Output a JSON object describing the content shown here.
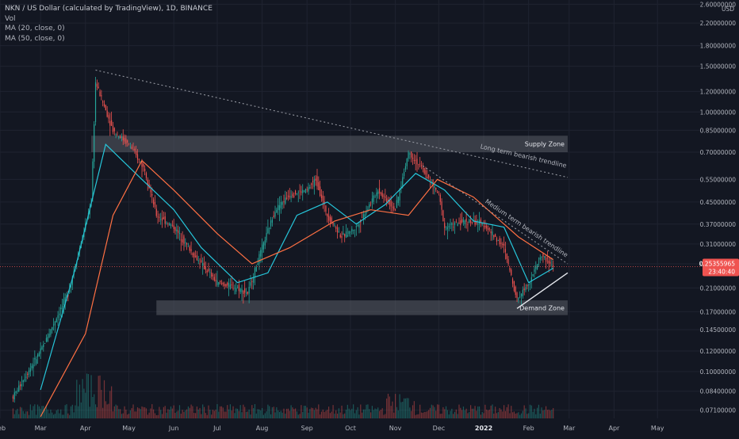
{
  "header": {
    "title": "NKN / US Dollar (calculated by TradingView), 1D, BINANCE",
    "indicators": [
      "Vol",
      "MA (20, close, 0)",
      "MA (50, close, 0)"
    ]
  },
  "price_axis": {
    "currency": "USD",
    "ticks": [
      "2.60000000",
      "2.20000000",
      "1.80000000",
      "1.50000000",
      "1.20000000",
      "1.00000000",
      "0.85000000",
      "0.70000000",
      "0.55000000",
      "0.45000000",
      "0.37000000",
      "0.31000000",
      "0.26000000",
      "0.21000000",
      "0.17000000",
      "0.14500000",
      "0.12000000",
      "0.10000000",
      "0.08400000",
      "0.07100000"
    ],
    "current_price": "0.25355965",
    "countdown": "23:40:40"
  },
  "time_axis": {
    "labels": [
      "Feb",
      "Mar",
      "Apr",
      "May",
      "Jun",
      "Jul",
      "Aug",
      "Sep",
      "Oct",
      "Nov",
      "Dec",
      "2022",
      "Feb",
      "Mar",
      "Apr",
      "May"
    ]
  },
  "annotations": {
    "supply_zone": "Supply Zone",
    "demand_zone": "Demand Zone",
    "long_trend": "Long term bearish trendline",
    "medium_trend": "Medium term bearish trendline"
  },
  "colors": {
    "background": "#131722",
    "up": "#26a69a",
    "down": "#ef5350",
    "ma20": "#26c6da",
    "ma50": "#ff7043",
    "zone": "#5a5d66",
    "price_label": "#ef5350"
  },
  "chart_data": {
    "type": "candlestick",
    "title": "NKN / US Dollar (calculated by TradingView), 1D, BINANCE",
    "scale": "log",
    "y_range": [
      0.066,
      2.7
    ],
    "x_range": [
      "2021-02-01",
      "2022-05-31"
    ],
    "series": [
      {
        "name": "NKNUSD",
        "points": [
          {
            "date": "2021-02-10",
            "close": 0.08
          },
          {
            "date": "2021-03-01",
            "close": 0.12
          },
          {
            "date": "2021-03-20",
            "close": 0.2
          },
          {
            "date": "2021-04-05",
            "close": 0.45
          },
          {
            "date": "2021-04-08",
            "close": 1.3
          },
          {
            "date": "2021-04-20",
            "close": 0.85
          },
          {
            "date": "2021-05-01",
            "close": 0.75
          },
          {
            "date": "2021-05-12",
            "close": 0.6
          },
          {
            "date": "2021-05-20",
            "close": 0.4
          },
          {
            "date": "2021-06-01",
            "close": 0.36
          },
          {
            "date": "2021-06-15",
            "close": 0.28
          },
          {
            "date": "2021-07-01",
            "close": 0.22
          },
          {
            "date": "2021-07-15",
            "close": 0.21
          },
          {
            "date": "2021-07-22",
            "close": 0.2
          },
          {
            "date": "2021-08-01",
            "close": 0.3
          },
          {
            "date": "2021-08-10",
            "close": 0.42
          },
          {
            "date": "2021-08-20",
            "close": 0.48
          },
          {
            "date": "2021-09-01",
            "close": 0.5
          },
          {
            "date": "2021-09-07",
            "close": 0.55
          },
          {
            "date": "2021-09-15",
            "close": 0.4
          },
          {
            "date": "2021-09-25",
            "close": 0.33
          },
          {
            "date": "2021-10-05",
            "close": 0.36
          },
          {
            "date": "2021-10-20",
            "close": 0.5
          },
          {
            "date": "2021-11-01",
            "close": 0.42
          },
          {
            "date": "2021-11-10",
            "close": 0.7
          },
          {
            "date": "2021-11-20",
            "close": 0.6
          },
          {
            "date": "2021-12-01",
            "close": 0.48
          },
          {
            "date": "2021-12-05",
            "close": 0.36
          },
          {
            "date": "2021-12-20",
            "close": 0.38
          },
          {
            "date": "2022-01-01",
            "close": 0.37
          },
          {
            "date": "2022-01-15",
            "close": 0.3
          },
          {
            "date": "2022-01-24",
            "close": 0.19
          },
          {
            "date": "2022-02-01",
            "close": 0.22
          },
          {
            "date": "2022-02-10",
            "close": 0.28
          },
          {
            "date": "2022-02-18",
            "close": 0.254
          }
        ]
      }
    ],
    "moving_averages": [
      {
        "name": "MA (20, close, 0)",
        "points": [
          [
            "2021-03-01",
            0.085
          ],
          [
            "2021-03-25",
            0.25
          ],
          [
            "2021-04-15",
            0.75
          ],
          [
            "2021-05-10",
            0.55
          ],
          [
            "2021-06-01",
            0.42
          ],
          [
            "2021-06-20",
            0.3
          ],
          [
            "2021-07-15",
            0.22
          ],
          [
            "2021-08-05",
            0.24
          ],
          [
            "2021-08-25",
            0.4
          ],
          [
            "2021-09-15",
            0.45
          ],
          [
            "2021-10-05",
            0.37
          ],
          [
            "2021-10-25",
            0.44
          ],
          [
            "2021-11-15",
            0.58
          ],
          [
            "2021-12-05",
            0.5
          ],
          [
            "2021-12-25",
            0.38
          ],
          [
            "2022-01-15",
            0.36
          ],
          [
            "2022-02-01",
            0.22
          ],
          [
            "2022-02-18",
            0.25
          ]
        ]
      },
      {
        "name": "MA (50, close, 0)",
        "points": [
          [
            "2021-03-01",
            0.067
          ],
          [
            "2021-04-01",
            0.14
          ],
          [
            "2021-04-20",
            0.4
          ],
          [
            "2021-05-10",
            0.65
          ],
          [
            "2021-06-01",
            0.5
          ],
          [
            "2021-07-01",
            0.34
          ],
          [
            "2021-07-25",
            0.26
          ],
          [
            "2021-08-20",
            0.3
          ],
          [
            "2021-09-20",
            0.38
          ],
          [
            "2021-10-15",
            0.42
          ],
          [
            "2021-11-10",
            0.4
          ],
          [
            "2021-11-30",
            0.55
          ],
          [
            "2021-12-25",
            0.47
          ],
          [
            "2022-01-25",
            0.33
          ],
          [
            "2022-02-18",
            0.27
          ]
        ]
      }
    ],
    "zones": [
      {
        "label": "Supply Zone",
        "from": "2021-04-05",
        "to": "2022-02-28",
        "low": 0.7,
        "high": 0.81
      },
      {
        "label": "Demand Zone",
        "from": "2021-05-20",
        "to": "2022-02-28",
        "low": 0.165,
        "high": 0.188
      }
    ],
    "trendlines": [
      {
        "label": "Long term bearish trendline",
        "from": [
          "2021-04-08",
          1.45
        ],
        "to": [
          "2022-02-28",
          0.56
        ]
      },
      {
        "label": "Medium term bearish trendline",
        "from": [
          "2021-11-20",
          0.62
        ],
        "to": [
          "2022-02-28",
          0.26
        ]
      },
      {
        "label": "",
        "from": [
          "2022-01-24",
          0.175
        ],
        "to": [
          "2022-02-28",
          0.24
        ]
      }
    ]
  }
}
